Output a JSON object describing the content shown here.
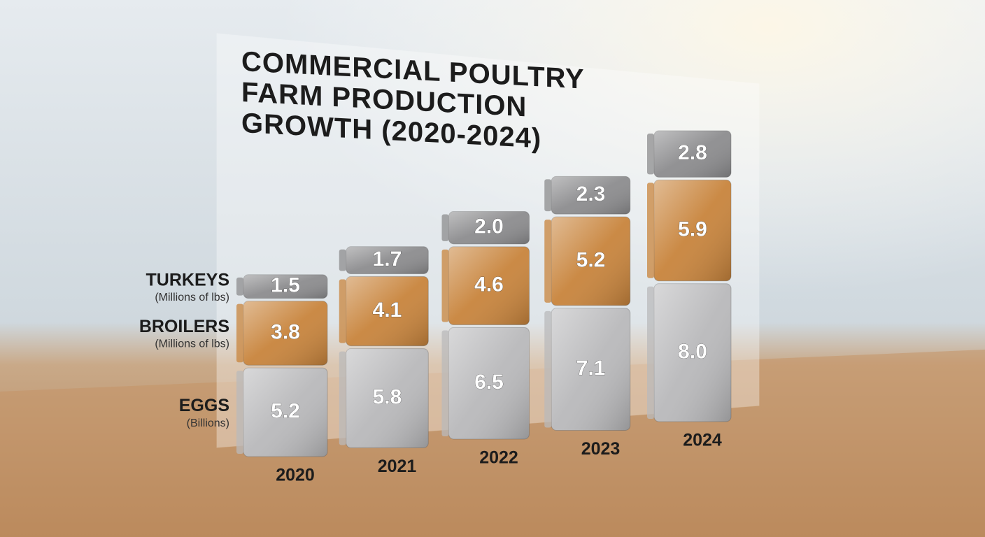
{
  "chart_data": {
    "type": "stacked-bar",
    "title": "COMMERCIAL POULTRY FARM PRODUCTION GROWTH (2020-2024)",
    "categories": [
      "2020",
      "2021",
      "2022",
      "2023",
      "2024"
    ],
    "series": [
      {
        "name": "EGGS",
        "unit": "(Billions)",
        "color": "#b9b9bb",
        "values": [
          5.2,
          5.8,
          6.5,
          7.1,
          8.0
        ],
        "value_labels": [
          "5.2",
          "5.8",
          "6.5",
          "7.1",
          "8.0"
        ]
      },
      {
        "name": "BROILERS",
        "unit": "(Millions of lbs)",
        "color": "#c8843c",
        "values": [
          3.8,
          4.1,
          4.6,
          5.2,
          5.9
        ]
      },
      {
        "name": "TURKEYS",
        "unit": "(Millions of lbs)",
        "color": "#8c8c8e",
        "values": [
          1.5,
          1.7,
          2.0,
          2.3,
          2.8
        ],
        "value_labels": [
          "1.5",
          "1.7",
          "2.0",
          "2.3",
          "2.8"
        ]
      }
    ]
  }
}
